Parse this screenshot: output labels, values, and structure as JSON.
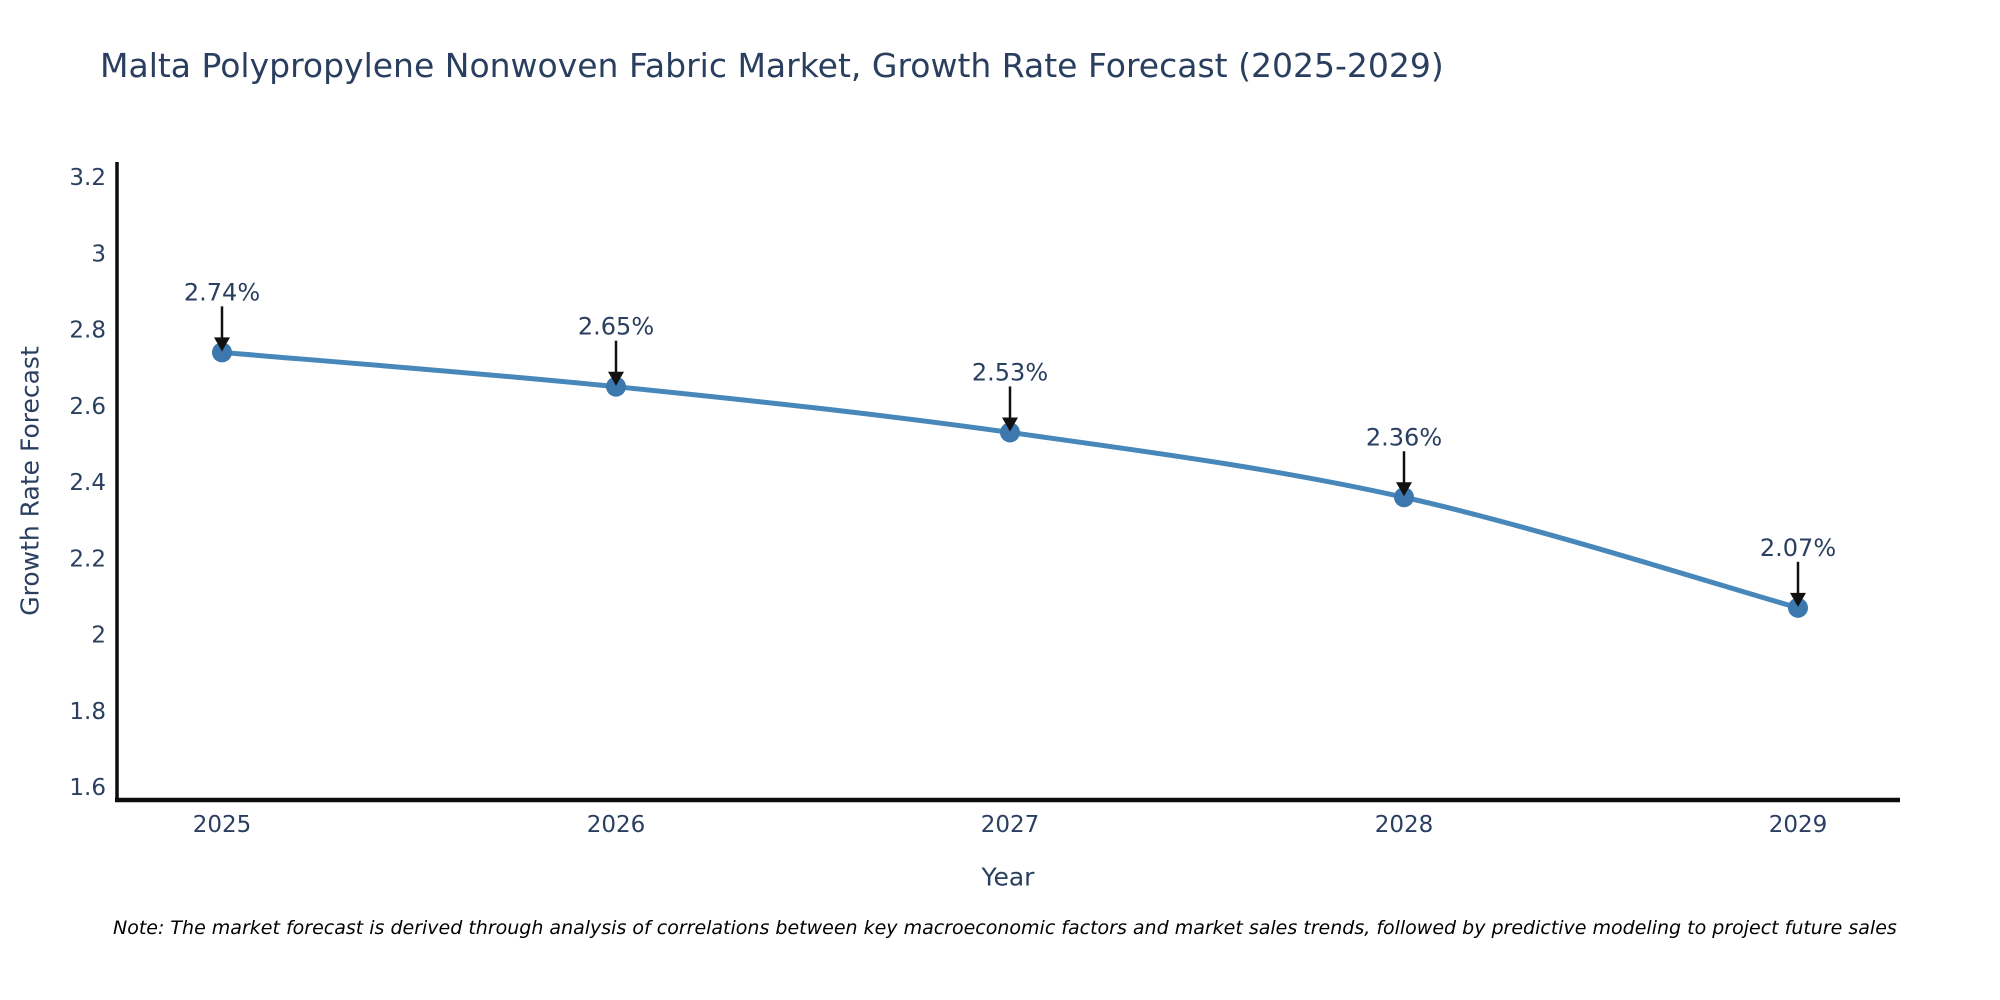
{
  "chart": {
    "note": "Note: The market forecast is derived through analysis of correlations between key macroeconomic factors and market sales trends, followed by predictive modeling to project future sales"
  },
  "chart_data": {
    "type": "line",
    "title": "Malta Polypropylene Nonwoven Fabric Market, Growth Rate Forecast (2025-2029)",
    "xlabel": "Year",
    "ylabel": "Growth Rate Forecast",
    "categories": [
      "2025",
      "2026",
      "2027",
      "2028",
      "2029"
    ],
    "series": [
      {
        "name": "Growth Rate Forecast",
        "values": [
          2.74,
          2.65,
          2.53,
          2.36,
          2.07
        ]
      }
    ],
    "point_labels": [
      "2.74%",
      "2.65%",
      "2.53%",
      "2.36%",
      "2.07%"
    ],
    "ytick_values": [
      1.6,
      1.8,
      2,
      2.2,
      2.4,
      2.6,
      2.8,
      3,
      3.2
    ],
    "ytick_labels": [
      "1.6",
      "1.8",
      "2",
      "2.2",
      "2.4",
      "2.6",
      "2.8",
      "3",
      "3.2"
    ],
    "ylim": [
      1.55,
      3.25
    ],
    "grid": false,
    "legend_position": "none",
    "colors": {
      "line": "#4787b9",
      "marker": "#3c78ad",
      "axis": "#0d0d0d",
      "text": "#2a3f5f",
      "arrow": "#111111",
      "note_text": "#000000",
      "background": "#ffffff"
    }
  }
}
